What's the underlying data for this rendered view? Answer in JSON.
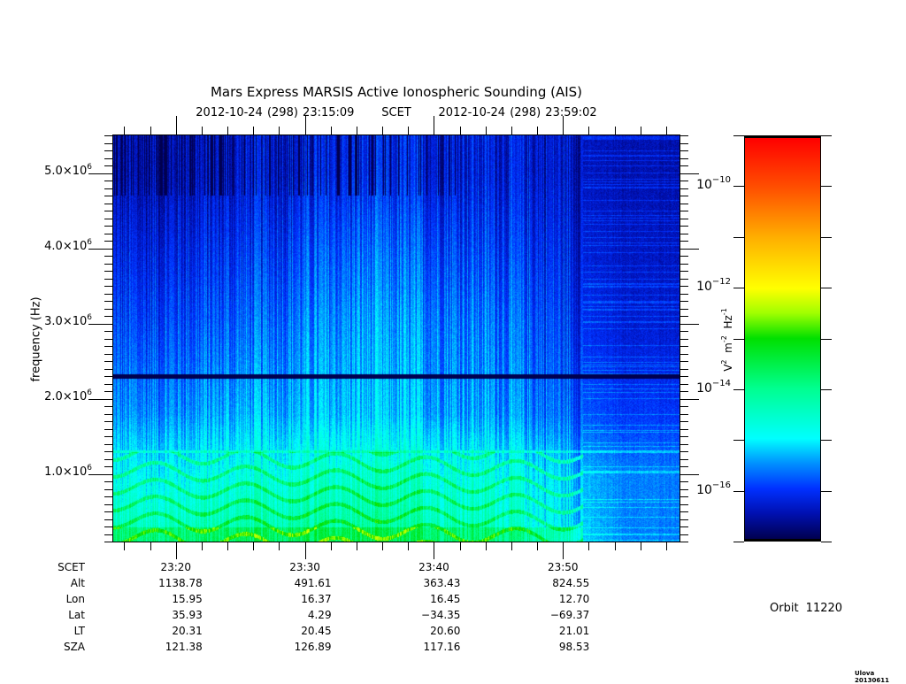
{
  "chart_data": {
    "type": "heatmap",
    "title": "Mars Express MARSIS Active Ionospheric Sounding (AIS)",
    "subtitle": {
      "start": "2012-10-24 (298) 23:15:09",
      "mid": "SCET",
      "end": "2012-10-24 (298) 23:59:02"
    },
    "xlabel": "SCET",
    "ylabel": "frequency (Hz)",
    "xlim_minutes_after_2300": [
      15.15,
      59.03
    ],
    "ylim_hz": [
      100000,
      5500000
    ],
    "y_ticks": [
      {
        "value": 1000000,
        "mantissa": "1.0×10",
        "exp": "6"
      },
      {
        "value": 2000000,
        "mantissa": "2.0×10",
        "exp": "6"
      },
      {
        "value": 3000000,
        "mantissa": "3.0×10",
        "exp": "6"
      },
      {
        "value": 4000000,
        "mantissa": "4.0×10",
        "exp": "6"
      },
      {
        "value": 5000000,
        "mantissa": "5.0×10",
        "exp": "6"
      }
    ],
    "x_major_ticks_minutes": [
      20,
      30,
      40,
      50
    ],
    "x_minor_tick_step_minutes": 2,
    "y_minor_tick_step_hz": 100000,
    "z_grid_log10": {
      "time_minutes": [
        17,
        25,
        35,
        45,
        55
      ],
      "freq_mhz": [
        0.3,
        1.0,
        1.8,
        3.0,
        4.0,
        5.0
      ],
      "values": [
        [
          -14.5,
          -14.3,
          -14.2,
          -14.5,
          -15.6
        ],
        [
          -15.0,
          -14.8,
          -14.6,
          -14.8,
          -15.6
        ],
        [
          -15.6,
          -15.4,
          -15.3,
          -15.5,
          -16.0
        ],
        [
          -16.0,
          -15.8,
          -15.5,
          -15.7,
          -16.3
        ],
        [
          -16.3,
          -16.1,
          -15.8,
          -16.0,
          -16.4
        ],
        [
          -16.6,
          -16.4,
          -16.2,
          -16.3,
          -16.5
        ]
      ]
    },
    "dark_band_hz": 2300000,
    "colorbar": {
      "label_base": [
        "V",
        "m",
        "Hz"
      ],
      "label_exps": [
        "2",
        "-2",
        "-1"
      ],
      "range_log10": [
        -17,
        -9
      ],
      "ticks": [
        {
          "value": -10,
          "base": "10",
          "exp": "−10"
        },
        {
          "value": -12,
          "base": "10",
          "exp": "−12"
        },
        {
          "value": -14,
          "base": "10",
          "exp": "−14"
        },
        {
          "value": -16,
          "base": "10",
          "exp": "−16"
        }
      ],
      "stops": [
        {
          "v": -17,
          "color": "#000050"
        },
        {
          "v": -16.5,
          "color": "#0010b0"
        },
        {
          "v": -16,
          "color": "#0030ff"
        },
        {
          "v": -15.5,
          "color": "#0090ff"
        },
        {
          "v": -15,
          "color": "#00ffff"
        },
        {
          "v": -14,
          "color": "#00ff90"
        },
        {
          "v": -13,
          "color": "#00e000"
        },
        {
          "v": -12.5,
          "color": "#a0ff00"
        },
        {
          "v": -12,
          "color": "#ffff00"
        },
        {
          "v": -11,
          "color": "#ffb000"
        },
        {
          "v": -10,
          "color": "#ff5000"
        },
        {
          "v": -9,
          "color": "#ff0000"
        }
      ]
    }
  },
  "ephemeris": {
    "row_labels": [
      "SCET",
      "Alt",
      "Lon",
      "Lat",
      "LT",
      "SZA"
    ],
    "columns": [
      {
        "SCET": "23:20",
        "Alt": "1138.78",
        "Lon": "15.95",
        "Lat": "35.93",
        "LT": "20.31",
        "SZA": "121.38"
      },
      {
        "SCET": "23:30",
        "Alt": "491.61",
        "Lon": "16.37",
        "Lat": "4.29",
        "LT": "20.45",
        "SZA": "126.89"
      },
      {
        "SCET": "23:40",
        "Alt": "363.43",
        "Lon": "16.45",
        "Lat": "−34.35",
        "LT": "20.60",
        "SZA": "117.16"
      },
      {
        "SCET": "23:50",
        "Alt": "824.55",
        "Lon": "12.70",
        "Lat": "−69.37",
        "LT": "21.01",
        "SZA": "98.53"
      }
    ]
  },
  "orbit": "Orbit 11220",
  "footer": "Ulova 20130611"
}
